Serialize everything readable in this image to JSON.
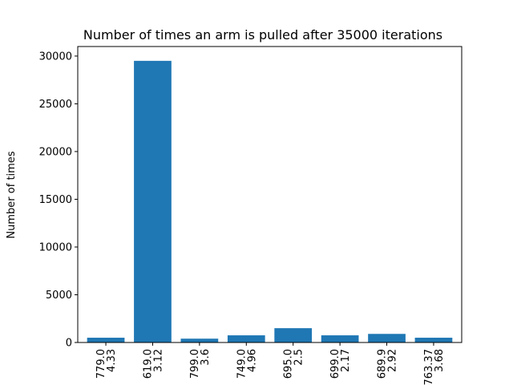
{
  "chart_data": {
    "type": "bar",
    "title": "Number of times an arm is pulled after 35000 iterations",
    "xlabel": "",
    "ylabel": "Number of times",
    "categories": [
      [
        "779.0",
        "4.33"
      ],
      [
        "619.0",
        "3.12"
      ],
      [
        "799.0",
        "3.6"
      ],
      [
        "749.0",
        "4.96"
      ],
      [
        "695.0",
        "2.5"
      ],
      [
        "699.0",
        "2.17"
      ],
      [
        "689.9",
        "2.92"
      ],
      [
        "763.37",
        "3.68"
      ]
    ],
    "values": [
      500,
      29500,
      400,
      750,
      1500,
      750,
      900,
      500
    ],
    "ylim": [
      0,
      31000
    ],
    "yticks": [
      0,
      5000,
      10000,
      15000,
      20000,
      25000,
      30000
    ],
    "bar_color": "#1f77b4",
    "grid": false,
    "legend": "none"
  }
}
